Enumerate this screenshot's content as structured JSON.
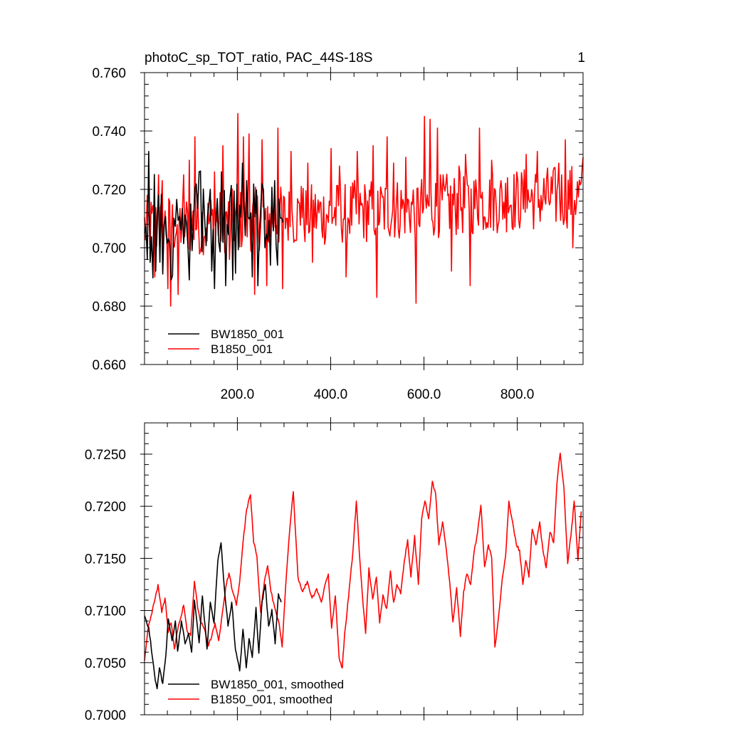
{
  "chart_data": [
    {
      "type": "line",
      "title": "photoC_sp_TOT_ratio, PAC_44S-18S",
      "panel_number": "1",
      "xlabel": "",
      "ylabel": "",
      "xlim": [
        1,
        941
      ],
      "ylim": [
        0.66,
        0.76
      ],
      "grid": false,
      "legend_position": "bottom-left",
      "x_ticks": [
        200,
        400,
        600,
        800
      ],
      "x_tick_labels": [
        "200.0",
        "400.0",
        "600.0",
        "800.0"
      ],
      "y_ticks": [
        0.66,
        0.68,
        0.7,
        0.72,
        0.74,
        0.76
      ],
      "y_tick_labels": [
        "0.660",
        "0.680",
        "0.700",
        "0.720",
        "0.740",
        "0.760"
      ],
      "series": [
        {
          "name": "BW1850_001",
          "color": "#000000",
          "x_range": [
            1,
            300
          ],
          "x_step": 3,
          "values": [
            0.709,
            0.702,
            0.716,
            0.698,
            0.712,
            0.705,
            0.7,
            0.715,
            0.708,
            0.704,
            0.711,
            0.696,
            0.713,
            0.707,
            0.718,
            0.701,
            0.709,
            0.714,
            0.704,
            0.711,
            0.699,
            0.713,
            0.708,
            0.715,
            0.703,
            0.71,
            0.717,
            0.706,
            0.712,
            0.709,
            0.719,
            0.704,
            0.711,
            0.716,
            0.707,
            0.713,
            0.71,
            0.72,
            0.705,
            0.712,
            0.718,
            0.708,
            0.714,
            0.711,
            0.702,
            0.715,
            0.708,
            0.711,
            0.716,
            0.704,
            0.712,
            0.707,
            0.717,
            0.701,
            0.709,
            0.713,
            0.706,
            0.712,
            0.709,
            0.715,
            0.703,
            0.71,
            0.714,
            0.707,
            0.712,
            0.699,
            0.715,
            0.708,
            0.711,
            0.704,
            0.709,
            0.713,
            0.706,
            0.711,
            0.708,
            0.716,
            0.704,
            0.71,
            0.713,
            0.707,
            0.712,
            0.709,
            0.715,
            0.705,
            0.711,
            0.714,
            0.708,
            0.712,
            0.71,
            0.716,
            0.706,
            0.712,
            0.709,
            0.713,
            0.707,
            0.711,
            0.714,
            0.708,
            0.712,
            0.71
          ],
          "peaks": [
            [
              9,
              0.733
            ],
            [
              8,
              0.722
            ],
            [
              6,
              0.696
            ],
            [
              12,
              0.695
            ],
            [
              24,
              0.692
            ],
            [
              40,
              0.691
            ],
            [
              57,
              0.689
            ],
            [
              96,
              0.689
            ],
            [
              101,
              0.715
            ],
            [
              119,
              0.726
            ],
            [
              145,
              0.692
            ],
            [
              150,
              0.686
            ],
            [
              165,
              0.726
            ],
            [
              175,
              0.687
            ],
            [
              190,
              0.689
            ],
            [
              210,
              0.729
            ],
            [
              220,
              0.723
            ],
            [
              232,
              0.69
            ],
            [
              245,
              0.687
            ],
            [
              258,
              0.7
            ],
            [
              270,
              0.694
            ],
            [
              280,
              0.723
            ],
            [
              286,
              0.694
            ]
          ]
        },
        {
          "name": "B1850_001",
          "color": "#ff0000",
          "x_range": [
            1,
            941
          ],
          "x_step": 2,
          "peaks": [
            [
              22,
              0.69
            ],
            [
              30,
              0.725
            ],
            [
              38,
              0.723
            ],
            [
              50,
              0.686
            ],
            [
              57,
              0.68
            ],
            [
              73,
              0.684
            ],
            [
              85,
              0.725
            ],
            [
              96,
              0.73
            ],
            [
              108,
              0.738
            ],
            [
              120,
              0.699
            ],
            [
              150,
              0.726
            ],
            [
              168,
              0.735
            ],
            [
              182,
              0.696
            ],
            [
              200,
              0.746
            ],
            [
              212,
              0.738
            ],
            [
              225,
              0.739
            ],
            [
              237,
              0.684
            ],
            [
              253,
              0.737
            ],
            [
              262,
              0.687
            ],
            [
              286,
              0.741
            ],
            [
              297,
              0.686
            ],
            [
              315,
              0.733
            ],
            [
              337,
              0.721
            ],
            [
              350,
              0.729
            ],
            [
              360,
              0.695
            ],
            [
              400,
              0.734
            ],
            [
              418,
              0.728
            ],
            [
              432,
              0.69
            ],
            [
              456,
              0.733
            ],
            [
              490,
              0.735
            ],
            [
              498,
              0.683
            ],
            [
              520,
              0.738
            ],
            [
              535,
              0.729
            ],
            [
              560,
              0.731
            ],
            [
              582,
              0.681
            ],
            [
              600,
              0.745
            ],
            [
              612,
              0.744
            ],
            [
              628,
              0.741
            ],
            [
              658,
              0.692
            ],
            [
              675,
              0.728
            ],
            [
              689,
              0.732
            ],
            [
              699,
              0.687
            ],
            [
              718,
              0.741
            ],
            [
              745,
              0.73
            ],
            [
              778,
              0.724
            ],
            [
              818,
              0.732
            ],
            [
              843,
              0.733
            ],
            [
              888,
              0.729
            ],
            [
              903,
              0.737
            ],
            [
              918,
              0.7
            ],
            [
              940,
              0.731
            ]
          ]
        }
      ],
      "legend_lines": [
        {
          "key": "bw",
          "label": "BW1850_001",
          "color": "#000000"
        },
        {
          "key": "b",
          "label": "B1850_001",
          "color": "#ff0000"
        }
      ]
    },
    {
      "type": "line",
      "title": "",
      "xlabel": "",
      "ylabel": "",
      "xlim": [
        1,
        941
      ],
      "ylim": [
        0.7,
        0.728
      ],
      "grid": false,
      "legend_position": "bottom-left",
      "y_ticks": [
        0.7,
        0.705,
        0.71,
        0.715,
        0.72,
        0.725
      ],
      "y_tick_labels": [
        "0.7000",
        "0.7050",
        "0.7100",
        "0.7150",
        "0.7200",
        "0.7250"
      ],
      "series": [
        {
          "name": "BW1850_001, smoothed",
          "color": "#000000",
          "x": [
            1,
            10,
            18,
            24,
            28,
            33,
            40,
            47,
            52,
            60,
            67,
            72,
            80,
            88,
            95,
            102,
            108,
            118,
            125,
            135,
            142,
            150,
            158,
            165,
            172,
            180,
            188,
            196,
            205,
            212,
            219,
            225,
            232,
            240,
            246,
            253,
            260,
            267,
            274,
            281,
            288,
            294
          ],
          "values": [
            0.7095,
            0.7084,
            0.7055,
            0.7033,
            0.7025,
            0.7045,
            0.703,
            0.7058,
            0.7092,
            0.7071,
            0.709,
            0.7061,
            0.709,
            0.7068,
            0.7078,
            0.706,
            0.711,
            0.7069,
            0.7114,
            0.7063,
            0.7108,
            0.7088,
            0.7147,
            0.7165,
            0.7122,
            0.7085,
            0.7108,
            0.7062,
            0.7042,
            0.7082,
            0.7045,
            0.7073,
            0.7055,
            0.7103,
            0.7059,
            0.7109,
            0.7125,
            0.7085,
            0.7101,
            0.7068,
            0.7116,
            0.7108
          ]
        },
        {
          "name": "B1850_001, smoothed",
          "color": "#ff0000",
          "x": [
            1,
            8,
            15,
            22,
            30,
            38,
            45,
            52,
            58,
            65,
            72,
            78,
            85,
            92,
            100,
            108,
            115,
            122,
            130,
            138,
            145,
            152,
            160,
            168,
            175,
            182,
            190,
            198,
            205,
            212,
            220,
            228,
            235,
            242,
            250,
            258,
            265,
            272,
            280,
            288,
            296,
            305,
            312,
            320,
            330,
            340,
            350,
            360,
            370,
            380,
            388,
            395,
            402,
            410,
            418,
            425,
            430,
            435,
            440,
            448,
            455,
            462,
            468,
            475,
            482,
            490,
            498,
            505,
            512,
            520,
            528,
            535,
            542,
            550,
            558,
            565,
            572,
            580,
            588,
            595,
            602,
            610,
            618,
            625,
            632,
            640,
            648,
            655,
            662,
            670,
            678,
            685,
            692,
            700,
            708,
            715,
            722,
            730,
            738,
            745,
            752,
            760,
            768,
            775,
            782,
            790,
            798,
            805,
            812,
            818,
            825,
            832,
            840,
            848,
            855,
            862,
            870,
            878,
            885,
            892,
            900,
            908,
            915,
            922,
            930,
            937
          ],
          "values": [
            0.7052,
            0.7081,
            0.7095,
            0.7108,
            0.7125,
            0.7098,
            0.7112,
            0.7079,
            0.7088,
            0.7063,
            0.7081,
            0.7092,
            0.7105,
            0.7081,
            0.7076,
            0.7128,
            0.7102,
            0.7088,
            0.7082,
            0.7066,
            0.7075,
            0.7088,
            0.7071,
            0.7098,
            0.7122,
            0.7136,
            0.7118,
            0.7105,
            0.7128,
            0.7165,
            0.7197,
            0.7211,
            0.7165,
            0.7152,
            0.7098,
            0.7128,
            0.7143,
            0.7118,
            0.7103,
            0.7091,
            0.7065,
            0.7133,
            0.7176,
            0.7214,
            0.7132,
            0.7118,
            0.7128,
            0.7112,
            0.7121,
            0.7108,
            0.7125,
            0.7135,
            0.7083,
            0.7114,
            0.7055,
            0.7045,
            0.7078,
            0.7098,
            0.7122,
            0.7158,
            0.7205,
            0.7152,
            0.7115,
            0.7078,
            0.7141,
            0.7111,
            0.7132,
            0.7088,
            0.7115,
            0.7102,
            0.7138,
            0.7108,
            0.7125,
            0.7116,
            0.7148,
            0.7168,
            0.7132,
            0.7172,
            0.7125,
            0.7188,
            0.7205,
            0.7188,
            0.7224,
            0.7212,
            0.7163,
            0.7185,
            0.7158,
            0.7128,
            0.7089,
            0.7122,
            0.7075,
            0.7118,
            0.7135,
            0.7125,
            0.7158,
            0.7175,
            0.7201,
            0.7142,
            0.7163,
            0.7151,
            0.7065,
            0.7095,
            0.7131,
            0.7152,
            0.7205,
            0.7185,
            0.7163,
            0.7158,
            0.7125,
            0.7148,
            0.7132,
            0.7178,
            0.7163,
            0.7185,
            0.7158,
            0.7141,
            0.7175,
            0.7165,
            0.7222,
            0.7251,
            0.7218,
            0.7145,
            0.7172,
            0.7205,
            0.7148,
            0.7195
          ]
        }
      ],
      "legend_lines": [
        {
          "key": "bw",
          "label": "BW1850_001, smoothed",
          "color": "#000000"
        },
        {
          "key": "b",
          "label": "B1850_001, smoothed",
          "color": "#ff0000"
        }
      ]
    }
  ]
}
